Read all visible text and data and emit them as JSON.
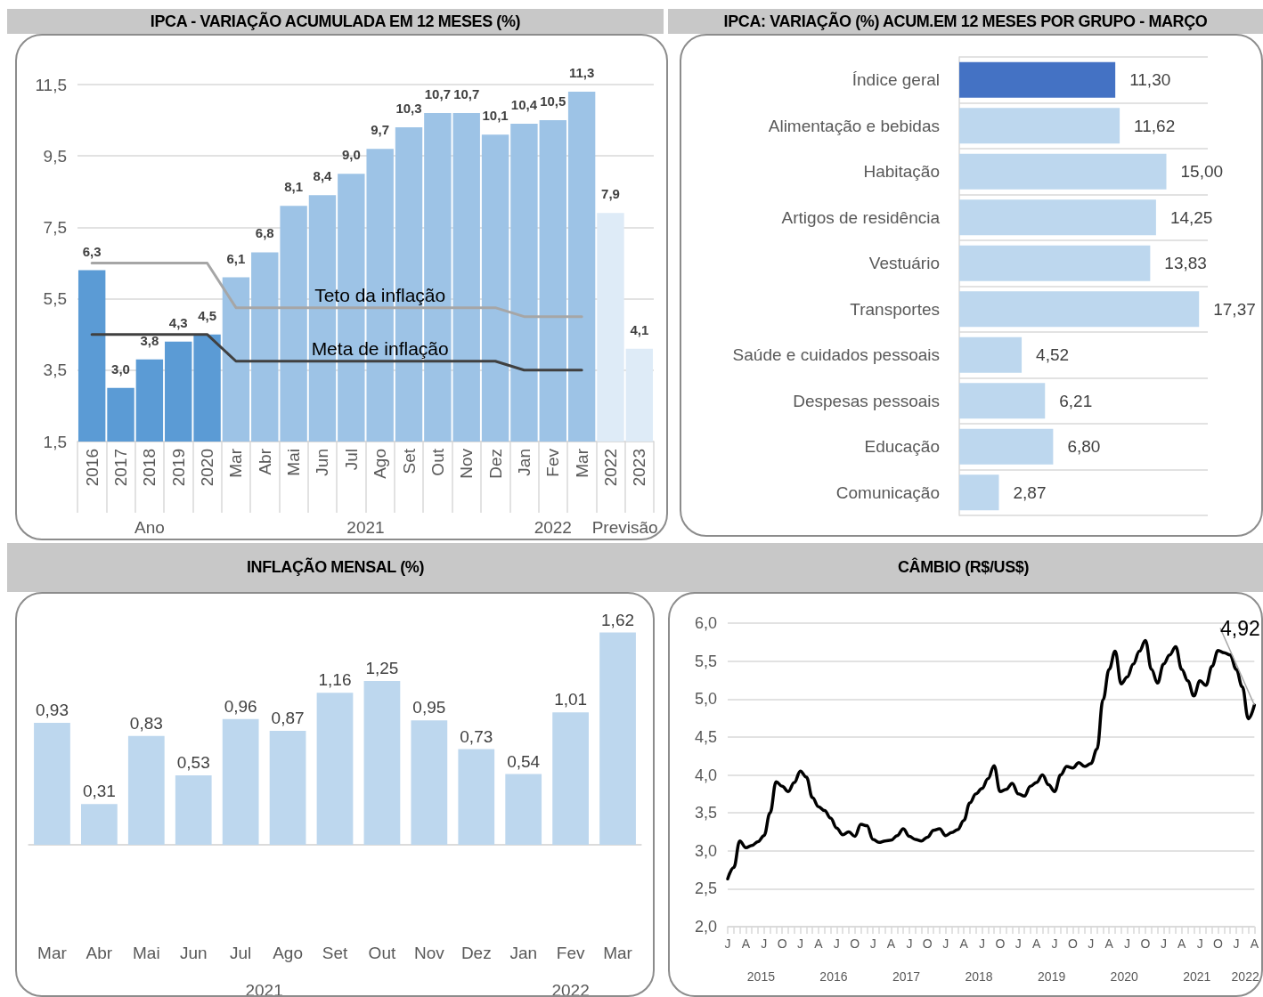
{
  "chart_data": [
    {
      "type": "bar",
      "title": "IPCA - VARIAÇÃO ACUMULADA EM 12 MESES (%)",
      "categories": [
        "2016",
        "2017",
        "2018",
        "2019",
        "2020",
        "Mar",
        "Abr",
        "Mai",
        "Jun",
        "Jul",
        "Ago",
        "Set",
        "Out",
        "Nov",
        "Dez",
        "Jan",
        "Fev",
        "Mar",
        "2022",
        "2023"
      ],
      "ylim": [
        1.5,
        11.5
      ],
      "yticks": [
        {
          "value": 1.5,
          "label": "1,5"
        },
        {
          "value": 3.5,
          "label": "3,5"
        },
        {
          "value": 5.5,
          "label": "5,5"
        },
        {
          "value": 7.5,
          "label": "7,5"
        },
        {
          "value": 9.5,
          "label": "9,5"
        },
        {
          "value": 11.5,
          "label": "11,5"
        }
      ],
      "grid": "y",
      "marker": "none",
      "series": [
        {
          "values": [
            6.3,
            3.0,
            3.8,
            4.3,
            4.5,
            6.1,
            6.8,
            8.1,
            8.4,
            9.0,
            9.7,
            10.3,
            10.7,
            10.7,
            10.1,
            10.4,
            10.5,
            11.3,
            7.9,
            4.1
          ],
          "colors": [
            "#5b9bd5",
            "#5b9bd5",
            "#5b9bd5",
            "#5b9bd5",
            "#5b9bd5",
            "#9dc3e6",
            "#9dc3e6",
            "#9dc3e6",
            "#9dc3e6",
            "#9dc3e6",
            "#9dc3e6",
            "#9dc3e6",
            "#9dc3e6",
            "#9dc3e6",
            "#9dc3e6",
            "#9dc3e6",
            "#9dc3e6",
            "#9dc3e6",
            "#deebf7",
            "#deebf7"
          ],
          "value_labels": [
            "6,3",
            "3,0",
            "3,8",
            "4,3",
            "4,5",
            "6,1",
            "6,8",
            "8,1",
            "8,4",
            "9,0",
            "9,7",
            "10,3",
            "10,7",
            "10,7",
            "10,1",
            "10,4",
            "10,5",
            "11,3",
            "7,9",
            "4,1"
          ]
        },
        {
          "type": "line",
          "name": "Teto da inflação",
          "color": "#a6a6a6",
          "values": [
            6.5,
            6.5,
            6.5,
            6.5,
            6.5,
            5.25,
            5.25,
            5.25,
            5.25,
            5.25,
            5.25,
            5.25,
            5.25,
            5.25,
            5.25,
            5.0,
            5.0,
            5.0,
            null,
            null
          ]
        },
        {
          "type": "line",
          "name": "Meta de inflação",
          "color": "#404040",
          "values": [
            4.5,
            4.5,
            4.5,
            4.5,
            4.5,
            3.75,
            3.75,
            3.75,
            3.75,
            3.75,
            3.75,
            3.75,
            3.75,
            3.75,
            3.75,
            3.5,
            3.5,
            3.5,
            null,
            null
          ]
        }
      ],
      "annotations": [
        "Ano",
        "2021",
        "2022",
        "Previsão"
      ]
    },
    {
      "type": "bar",
      "orientation": "horizontal",
      "title": "IPCA: VARIAÇÃO (%) ACUM.EM 12 MESES POR GRUPO - MARÇO",
      "categories": [
        "Índice geral",
        "Alimentação e bebidas",
        "Habitação",
        "Artigos de residência",
        "Vestuário",
        "Transportes",
        "Saúde e cuidados pessoais",
        "Despesas pessoais",
        "Educação",
        "Comunicação"
      ],
      "values": [
        11.3,
        11.62,
        15.0,
        14.25,
        13.83,
        17.37,
        4.52,
        6.21,
        6.8,
        2.87
      ],
      "colors": [
        "#4472c4",
        "#bdd7ee",
        "#bdd7ee",
        "#bdd7ee",
        "#bdd7ee",
        "#bdd7ee",
        "#bdd7ee",
        "#bdd7ee",
        "#bdd7ee",
        "#bdd7ee"
      ],
      "value_labels": [
        "11,30",
        "11,62",
        "15,00",
        "14,25",
        "13,83",
        "17,37",
        "4,52",
        "6,21",
        "6,80",
        "2,87"
      ],
      "grid": "y",
      "tick_labels": "y"
    },
    {
      "type": "bar",
      "title": "INFLAÇÃO MENSAL (%)",
      "categories": [
        "Mar",
        "Abr",
        "Mai",
        "Jun",
        "Jul",
        "Ago",
        "Set",
        "Out",
        "Nov",
        "Dez",
        "Jan",
        "Fev",
        "Mar"
      ],
      "values": [
        0.93,
        0.31,
        0.83,
        0.53,
        0.96,
        0.87,
        1.16,
        1.25,
        0.95,
        0.73,
        0.54,
        1.01,
        1.62
      ],
      "color": "#bdd7ee",
      "value_labels": [
        "0,93",
        "0,31",
        "0,83",
        "0,53",
        "0,96",
        "0,87",
        "1,16",
        "1,25",
        "0,95",
        "0,73",
        "0,54",
        "1,01",
        "1,62"
      ],
      "yticks": [
        {
          "value": 0,
          "label": null
        }
      ],
      "grid": "y",
      "tick_labels": "x",
      "annotations": [
        "2021",
        "2022"
      ]
    },
    {
      "type": "line",
      "title": "CÂMBIO (R$/US$)",
      "color": "#000000",
      "marker": "none",
      "grid": "y",
      "categories": [
        "J",
        null,
        null,
        "A",
        null,
        null,
        "J",
        null,
        null,
        "O",
        null,
        null,
        "J",
        null,
        null,
        "A",
        null,
        null,
        "J",
        null,
        null,
        "O",
        null,
        null,
        "J",
        null,
        null,
        "A",
        null,
        null,
        "J",
        null,
        null,
        "O",
        null,
        null,
        "J",
        null,
        null,
        "A",
        null,
        null,
        "J",
        null,
        null,
        "O",
        null,
        null,
        "J",
        null,
        null,
        "A",
        null,
        null,
        "J",
        null,
        null,
        "O",
        null,
        null,
        "J",
        null,
        null,
        "A",
        null,
        null,
        "J",
        null,
        null,
        "O",
        null,
        null,
        "J",
        null,
        null,
        "A",
        null,
        null,
        "J",
        null,
        null,
        "O",
        null,
        null,
        "J",
        null,
        null,
        "A"
      ],
      "values": [
        2.63,
        2.78,
        3.13,
        3.04,
        3.07,
        3.12,
        3.2,
        3.5,
        3.91,
        3.85,
        3.78,
        3.9,
        4.05,
        3.97,
        3.7,
        3.58,
        3.53,
        3.43,
        3.3,
        3.21,
        3.25,
        3.19,
        3.35,
        3.33,
        3.15,
        3.11,
        3.13,
        3.14,
        3.2,
        3.29,
        3.19,
        3.15,
        3.13,
        3.18,
        3.27,
        3.29,
        3.2,
        3.24,
        3.28,
        3.4,
        3.63,
        3.75,
        3.82,
        3.95,
        4.12,
        3.78,
        3.81,
        3.89,
        3.75,
        3.72,
        3.85,
        3.9,
        4.0,
        3.87,
        3.78,
        4.0,
        4.11,
        4.09,
        4.16,
        4.11,
        4.15,
        4.34,
        4.99,
        5.39,
        5.63,
        5.2,
        5.29,
        5.46,
        5.63,
        5.77,
        5.39,
        5.21,
        5.46,
        5.58,
        5.69,
        5.39,
        5.24,
        5.04,
        5.24,
        5.18,
        5.43,
        5.64,
        5.61,
        5.58,
        5.39,
        5.16,
        4.74,
        4.92
      ],
      "ylim": [
        2,
        6
      ],
      "yticks": [
        {
          "value": 2,
          "label": "2,0"
        },
        {
          "value": 2.5,
          "label": "2,5"
        },
        {
          "value": 3,
          "label": "3,0"
        },
        {
          "value": 3.5,
          "label": "3,5"
        },
        {
          "value": 4,
          "label": "4,0"
        },
        {
          "value": 4.5,
          "label": "4,5"
        },
        {
          "value": 5,
          "label": "5,0"
        },
        {
          "value": 5.5,
          "label": "5,5"
        },
        {
          "value": 6,
          "label": "6,0"
        }
      ],
      "annotations": [
        "2015",
        "2016",
        "2017",
        "2018",
        "2019",
        "2020",
        "2021",
        "2022"
      ],
      "value_labels": [
        null,
        null,
        null,
        null,
        null,
        null,
        null,
        null,
        null,
        null,
        null,
        null,
        null,
        null,
        null,
        null,
        null,
        null,
        null,
        null,
        null,
        null,
        null,
        null,
        null,
        null,
        null,
        null,
        null,
        null,
        null,
        null,
        null,
        null,
        null,
        null,
        null,
        null,
        null,
        null,
        null,
        null,
        null,
        null,
        null,
        null,
        null,
        null,
        null,
        null,
        null,
        null,
        null,
        null,
        null,
        null,
        null,
        null,
        null,
        null,
        null,
        null,
        null,
        null,
        null,
        null,
        null,
        null,
        null,
        null,
        null,
        null,
        null,
        null,
        null,
        null,
        null,
        null,
        null,
        null,
        null,
        null,
        null,
        null,
        null,
        null,
        null,
        "4,92"
      ]
    }
  ]
}
